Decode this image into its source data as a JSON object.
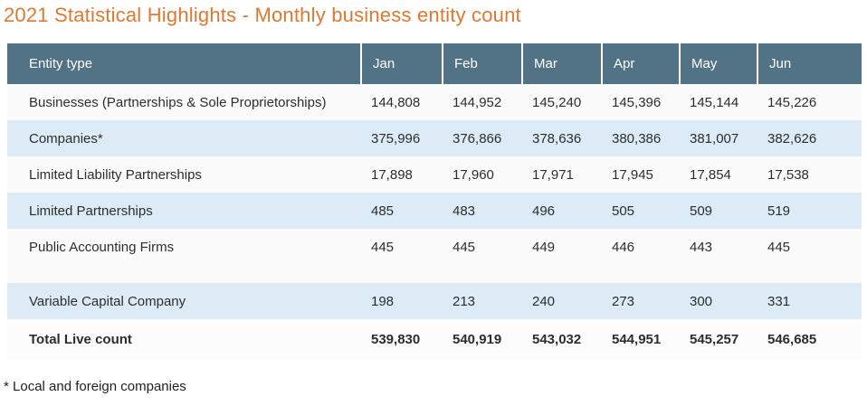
{
  "page": {
    "title": "2021 Statistical Highlights - Monthly business entity count",
    "footnote": "* Local and foreign companies"
  },
  "colors": {
    "title_orange": "#e0782f",
    "header_bg": "#527385",
    "header_text": "#ffffff",
    "stripe_blue": "#dcebf5",
    "stripe_white": "#fbfbfb",
    "body_text": "#2d2d2d"
  },
  "table": {
    "columns": [
      "Entity type",
      "Jan",
      "Feb",
      "Mar",
      "Apr",
      "May",
      "Jun"
    ],
    "rows": [
      {
        "label": "Businesses (Partnerships & Sole Proprietorships)",
        "values": [
          "144,808",
          "144,952",
          "145,240",
          "145,396",
          "145,144",
          "145,226"
        ],
        "variant": "white"
      },
      {
        "label": "Companies*",
        "values": [
          "375,996",
          "376,866",
          "378,636",
          "380,386",
          "381,007",
          "382,626"
        ],
        "variant": "blue"
      },
      {
        "label": "Limited Liability Partnerships",
        "values": [
          "17,898",
          "17,960",
          "17,971",
          "17,945",
          "17,854",
          "17,538"
        ],
        "variant": "white"
      },
      {
        "label": "Limited Partnerships",
        "values": [
          "485",
          "483",
          "496",
          "505",
          "509",
          "519"
        ],
        "variant": "blue"
      },
      {
        "label": "Public Accounting Firms",
        "values": [
          "445",
          "445",
          "449",
          "446",
          "443",
          "445"
        ],
        "variant": "white"
      },
      {
        "label": "",
        "values": [
          "",
          "",
          "",
          "",
          "",
          ""
        ],
        "variant": "spacer"
      },
      {
        "label": "Variable Capital Company",
        "values": [
          "198",
          "213",
          "240",
          "273",
          "300",
          "331"
        ],
        "variant": "blue"
      },
      {
        "label": "Total Live count",
        "values": [
          "539,830",
          "540,919",
          "543,032",
          "544,951",
          "545,257",
          "546,685"
        ],
        "variant": "total"
      }
    ]
  }
}
